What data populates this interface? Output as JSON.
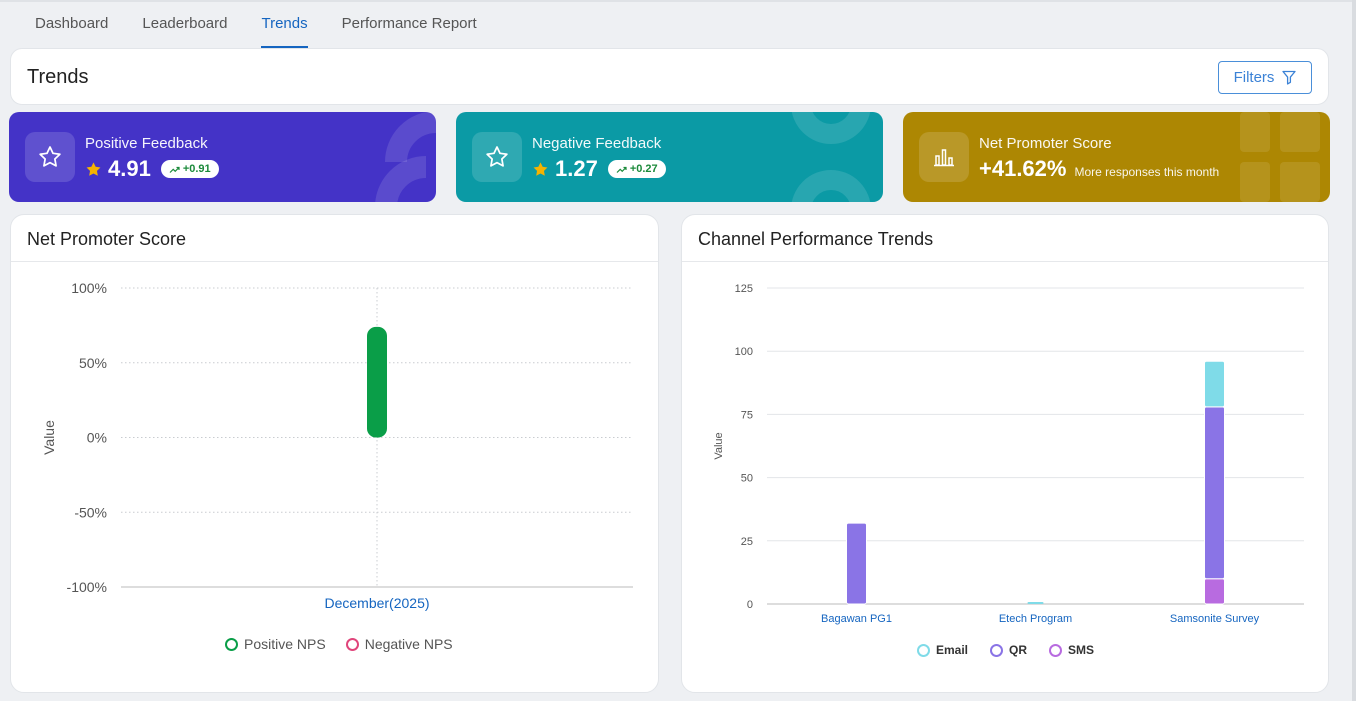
{
  "tabs": [
    "Dashboard",
    "Leaderboard",
    "Trends",
    "Performance Report"
  ],
  "header": {
    "title": "Trends",
    "filters_label": "Filters"
  },
  "stats": {
    "positive": {
      "label": "Positive Feedback",
      "value": "4.91",
      "delta": "+0.91",
      "color": "#4433c7"
    },
    "negative": {
      "label": "Negative Feedback",
      "value": "1.27",
      "delta": "+0.27",
      "color": "#0b9aa5"
    },
    "nps": {
      "label": "Net Promoter Score",
      "value": "+41.62%",
      "sub": "More responses this month",
      "color": "#ad8703"
    }
  },
  "nps_card": {
    "title": "Net Promoter Score"
  },
  "channel_card": {
    "title": "Channel Performance Trends"
  },
  "chart_data": [
    {
      "type": "bar",
      "title": "Net Promoter Score",
      "xlabel": "",
      "ylabel": "Value",
      "categories": [
        "December(2025)"
      ],
      "yticks": [
        "100%",
        "50%",
        "0%",
        "-50%",
        "-100%"
      ],
      "ylim": [
        -100,
        100
      ],
      "series": [
        {
          "name": "Positive NPS",
          "values": [
            74
          ],
          "color": "#0a9e48"
        },
        {
          "name": "Negative NPS",
          "values": [
            0
          ],
          "color": "#e0457b"
        }
      ]
    },
    {
      "type": "bar",
      "stacked": true,
      "title": "Channel Performance Trends",
      "xlabel": "",
      "ylabel": "Value",
      "categories": [
        "Bagawan PG1",
        "Etech Program",
        "Samsonite Survey"
      ],
      "yticks": [
        "125",
        "100",
        "75",
        "50",
        "25",
        "0"
      ],
      "ylim": [
        0,
        125
      ],
      "series": [
        {
          "name": "SMS",
          "values": [
            0,
            0,
            10
          ],
          "color": "#b86be0"
        },
        {
          "name": "QR",
          "values": [
            32,
            0,
            68
          ],
          "color": "#8a74e6"
        },
        {
          "name": "Email",
          "values": [
            0,
            0,
            18
          ],
          "color": "#7fdbe8"
        }
      ],
      "legend_order": [
        "Email",
        "QR",
        "SMS"
      ]
    }
  ]
}
